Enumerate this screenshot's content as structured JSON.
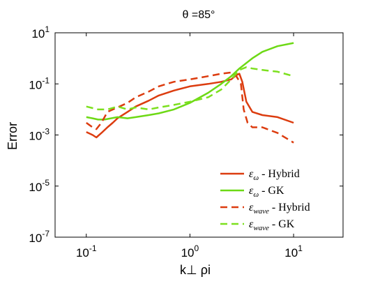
{
  "chart_data": {
    "type": "line",
    "title": "θ =85°",
    "xlabel": "k⊥ ρi",
    "ylabel": "Error",
    "xscale": "log",
    "yscale": "log",
    "xlim": [
      0.05,
      30
    ],
    "ylim": [
      1e-07,
      10
    ],
    "x_ticks": [
      {
        "value": 0.1,
        "base": "10",
        "exp": "-1"
      },
      {
        "value": 1,
        "base": "10",
        "exp": "0"
      },
      {
        "value": 10,
        "base": "10",
        "exp": "1"
      }
    ],
    "y_ticks": [
      {
        "value": 1e-07,
        "base": "10",
        "exp": "-7"
      },
      {
        "value": 1e-05,
        "base": "10",
        "exp": "-5"
      },
      {
        "value": 0.001,
        "base": "10",
        "exp": "-3"
      },
      {
        "value": 0.1,
        "base": "10",
        "exp": "-1"
      },
      {
        "value": 10,
        "base": "10",
        "exp": "1"
      }
    ],
    "grid": false,
    "legend_position": "bottom-right",
    "series": [
      {
        "name": "εω - Hybrid",
        "legend_symbol": "ε",
        "legend_sub": "ω",
        "legend_rest": " - Hybrid",
        "color": "#dc3c0f",
        "dash": "solid",
        "x": [
          0.1,
          0.115,
          0.125,
          0.14,
          0.16,
          0.18,
          0.2,
          0.25,
          0.3,
          0.4,
          0.5,
          0.7,
          1.0,
          1.5,
          2.0,
          2.5,
          2.8,
          3.0,
          3.2,
          3.5,
          4.0,
          5.0,
          7.0,
          10.0
        ],
        "y": [
          0.0013,
          0.001,
          0.0008,
          0.0012,
          0.002,
          0.003,
          0.0045,
          0.008,
          0.013,
          0.022,
          0.035,
          0.055,
          0.08,
          0.1,
          0.12,
          0.15,
          0.22,
          0.25,
          0.12,
          0.02,
          0.008,
          0.006,
          0.005,
          0.003
        ]
      },
      {
        "name": "εω - GK",
        "legend_symbol": "ε",
        "legend_sub": "ω",
        "legend_rest": " - GK",
        "color": "#6dd915",
        "dash": "solid",
        "x": [
          0.1,
          0.115,
          0.13,
          0.15,
          0.2,
          0.25,
          0.3,
          0.4,
          0.5,
          0.7,
          1.0,
          1.5,
          2.0,
          2.5,
          3.0,
          4.0,
          5.0,
          7.0,
          10.0
        ],
        "y": [
          0.005,
          0.0045,
          0.004,
          0.004,
          0.005,
          0.0045,
          0.005,
          0.006,
          0.007,
          0.01,
          0.018,
          0.045,
          0.1,
          0.2,
          0.4,
          1.0,
          1.8,
          3.0,
          4.0
        ]
      },
      {
        "name": "εwave - Hybrid",
        "legend_symbol": "ε",
        "legend_sub": "wave",
        "legend_rest": " - Hybrid",
        "color": "#dc3c0f",
        "dash": "dashed",
        "x": [
          0.1,
          0.115,
          0.125,
          0.14,
          0.16,
          0.2,
          0.25,
          0.3,
          0.4,
          0.5,
          0.7,
          1.0,
          1.5,
          2.0,
          2.5,
          2.8,
          3.1,
          3.3,
          3.6,
          4.0,
          5.0,
          7.0,
          10.0
        ],
        "y": [
          0.003,
          0.002,
          0.0017,
          0.003,
          0.008,
          0.012,
          0.018,
          0.03,
          0.05,
          0.08,
          0.12,
          0.15,
          0.2,
          0.25,
          0.28,
          0.2,
          0.1,
          0.01,
          0.003,
          0.002,
          0.002,
          0.0012,
          0.0005
        ]
      },
      {
        "name": "εwave - GK",
        "legend_symbol": "ε",
        "legend_sub": "wave",
        "legend_rest": " - GK",
        "color": "#7ce01e",
        "dash": "dashed",
        "x": [
          0.1,
          0.13,
          0.16,
          0.2,
          0.25,
          0.3,
          0.4,
          0.5,
          0.7,
          1.0,
          1.5,
          2.0,
          2.5,
          3.0,
          3.5,
          4.0,
          5.0,
          7.0,
          10.0
        ],
        "y": [
          0.013,
          0.01,
          0.01,
          0.013,
          0.01,
          0.012,
          0.01,
          0.012,
          0.015,
          0.02,
          0.03,
          0.06,
          0.15,
          0.35,
          0.45,
          0.4,
          0.35,
          0.3,
          0.2
        ]
      }
    ]
  }
}
